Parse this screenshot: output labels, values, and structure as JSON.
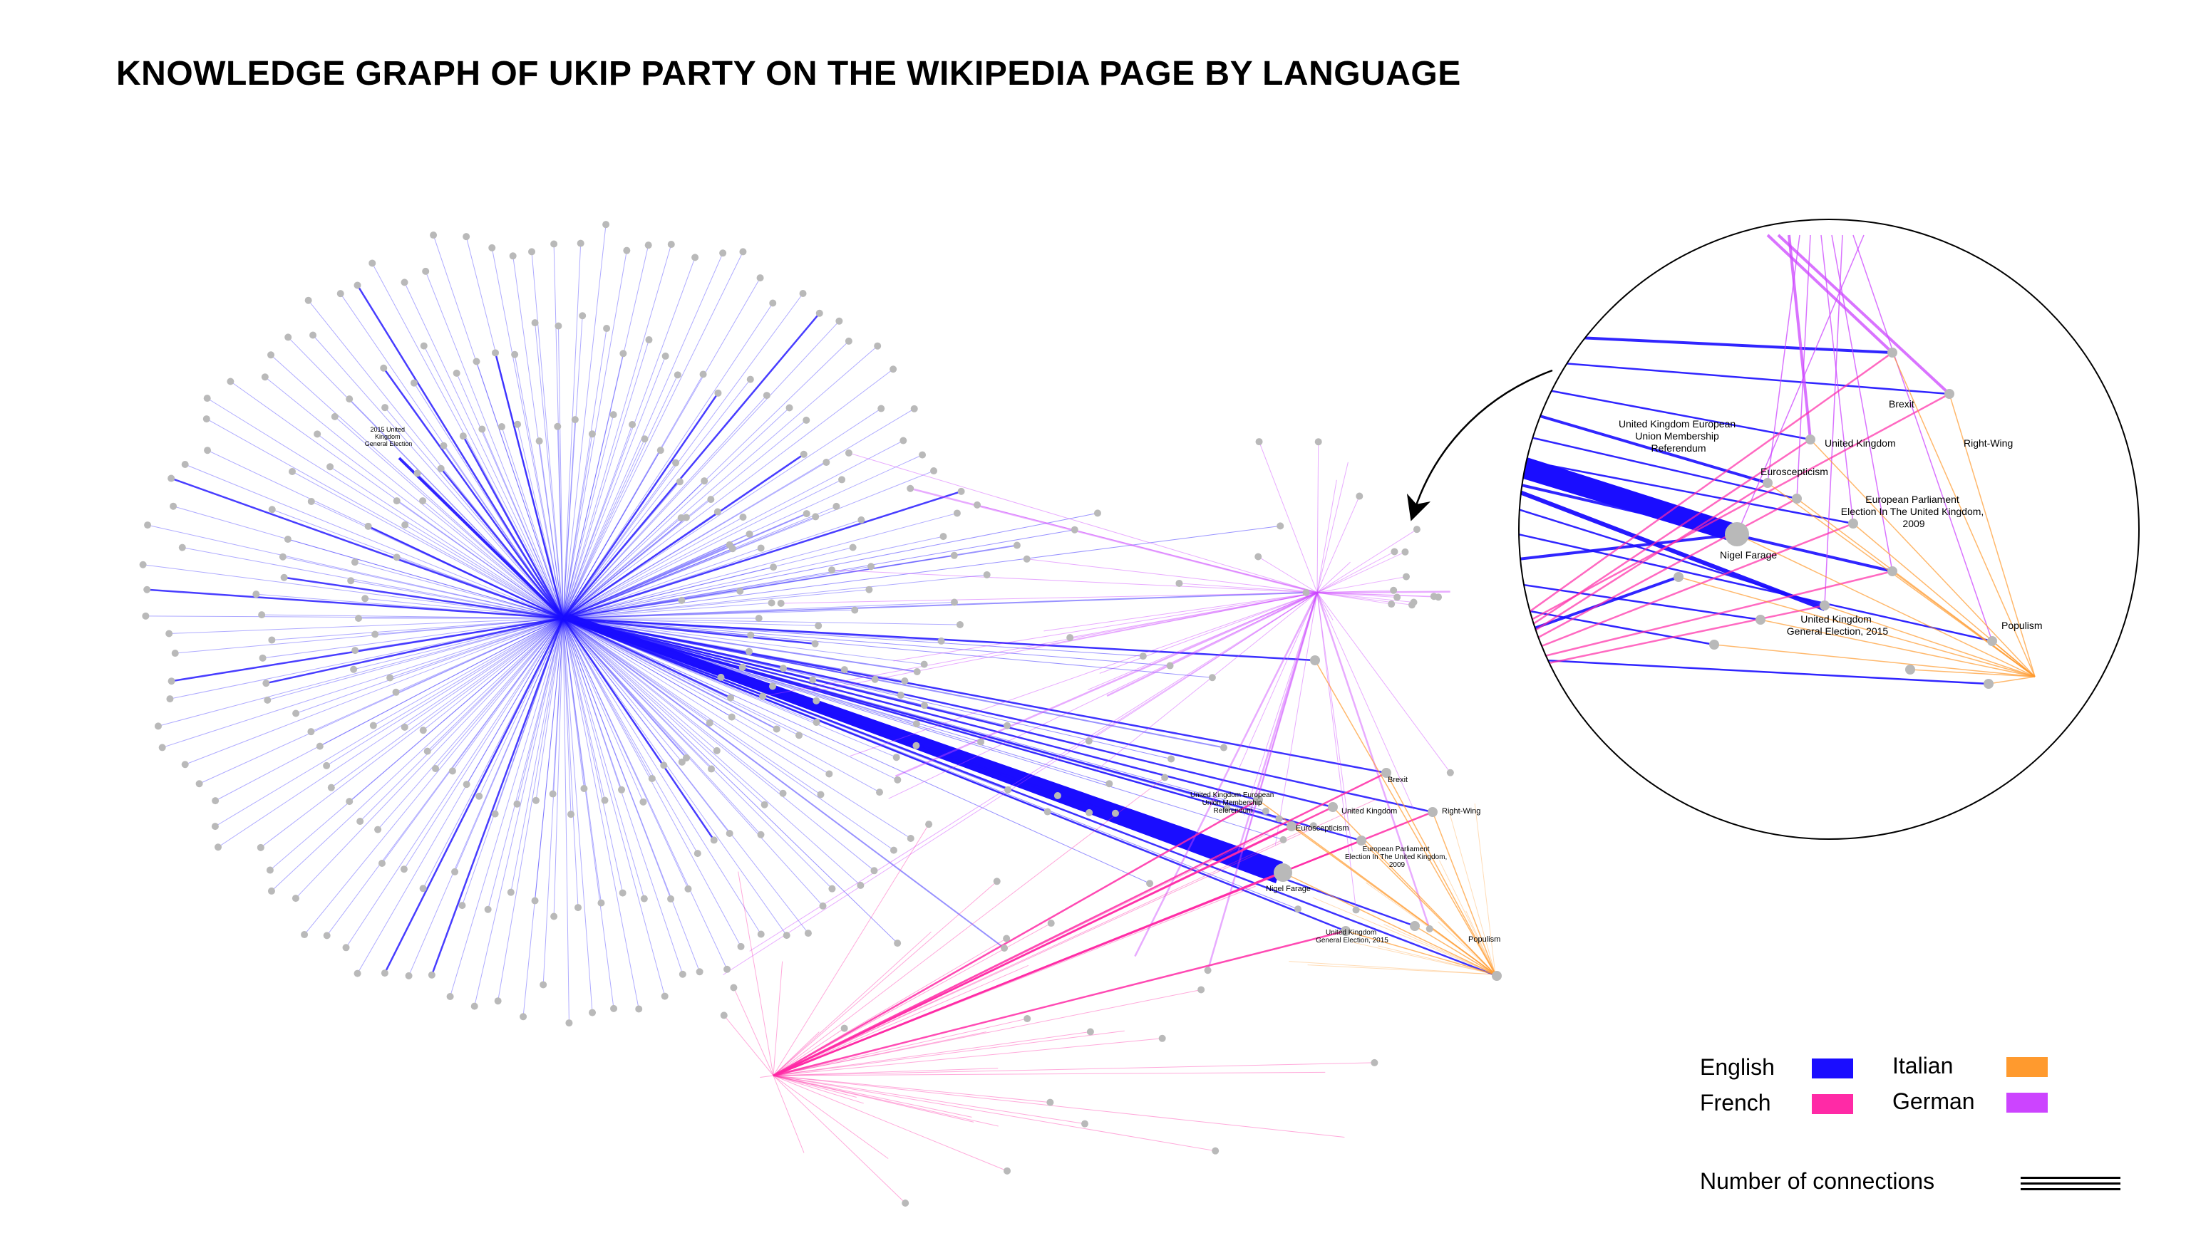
{
  "title": "KNOWLEDGE GRAPH OF UKIP PARTY ON THE WIKIPEDIA PAGE BY LANGUAGE",
  "colors": {
    "english": "#1a0dff",
    "french": "#ff2aa6",
    "italian": "#ff9a2e",
    "german": "#cc44ff",
    "node": "#b9b9b9"
  },
  "graph_labels": {
    "ge2015": "2015 United Kingdom General Election",
    "brexit": "Brexit",
    "uk": "United Kingdom",
    "right_wing": "Right-Wing",
    "referendum": "United Kingdom European Union Membership Referendum",
    "euroscepticism": "Euroscepticism",
    "ep2009": "European Parliament Election In The United Kingdom, 2009",
    "farage": "Nigel Farage",
    "ge2015b": "United Kingdom General Election, 2015",
    "populism": "Populism"
  },
  "zoom_labels": {
    "brexit": "Brexit",
    "referendum_1": "United Kingdom European",
    "referendum_2": "Union Membership",
    "referendum_3": "Referendum",
    "uk": "United Kingdom",
    "right_wing": "Right-Wing",
    "euroscepticism": "Euroscepticism",
    "ep2009_1": "European Parliament",
    "ep2009_2": "Election In The United Kingdom,",
    "ep2009_3": "2009",
    "farage": "Nigel Farage",
    "ge2015_1": "United Kingdom",
    "ge2015_2": "General Election, 2015",
    "populism": "Populism"
  },
  "legend": {
    "english": "English",
    "french": "French",
    "italian": "Italian",
    "german": "German",
    "connections": "Number of connections"
  }
}
